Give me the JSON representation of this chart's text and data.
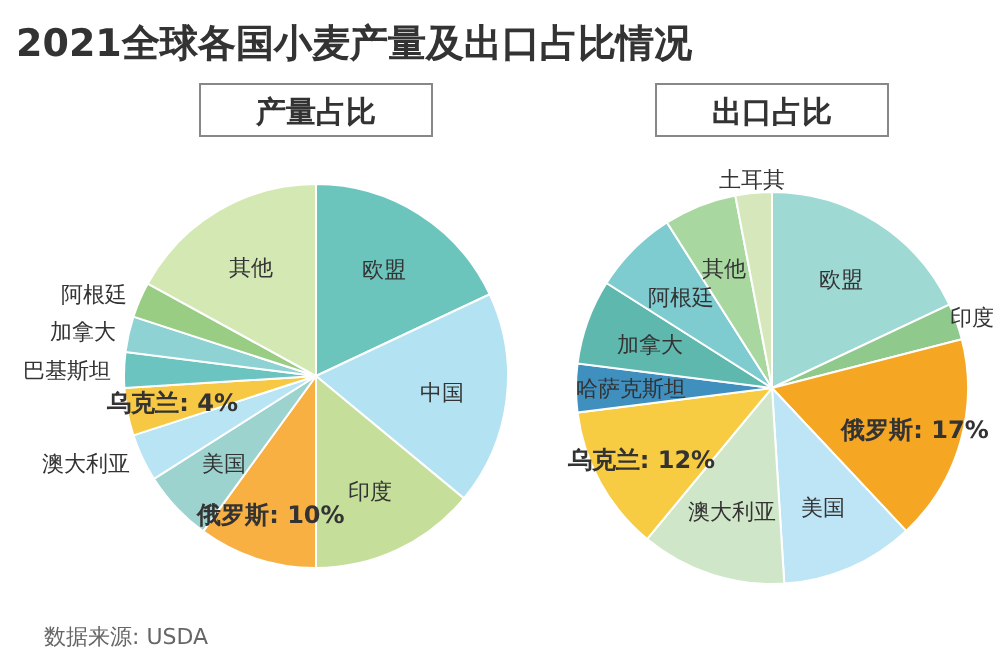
{
  "chart_data": [
    {
      "type": "other",
      "title": "2021全球各国小麦产量及出口占比情况",
      "annotations": [
        "数据来源: USDA"
      ]
    },
    {
      "type": "pie",
      "title": "产量占比",
      "categories": [
        "欧盟",
        "中国",
        "印度",
        "俄罗斯",
        "美国",
        "澳大利亚",
        "乌克兰",
        "巴基斯坦",
        "加拿大",
        "阿根廷",
        "其他"
      ],
      "values": [
        18,
        18,
        14,
        10,
        6,
        4,
        4,
        3,
        3,
        3,
        17
      ],
      "value_labels": [
        null,
        null,
        null,
        "10%",
        null,
        null,
        "4%",
        null,
        null,
        null,
        null
      ],
      "colors": [
        "#6cc5bc",
        "#b3e2f2",
        "#c5df9a",
        "#f9b042",
        "#9dd3cf",
        "#b8e4f4",
        "#f7c843",
        "#6bc4bf",
        "#8fd2d4",
        "#9acd84",
        "#d4e8b4"
      ]
    },
    {
      "type": "pie",
      "title": "出口占比",
      "categories": [
        "欧盟",
        "印度",
        "俄罗斯",
        "美国",
        "澳大利亚",
        "乌克兰",
        "哈萨克斯坦",
        "加拿大",
        "阿根廷",
        "其他",
        "土耳其"
      ],
      "values": [
        18,
        3,
        17,
        11,
        12,
        12,
        4,
        7,
        7,
        6,
        3
      ],
      "value_labels": [
        null,
        null,
        "17%",
        null,
        null,
        "12%",
        null,
        null,
        null,
        null,
        null
      ],
      "colors": [
        "#9ed9d4",
        "#8fc98c",
        "#f5a623",
        "#bde5f5",
        "#cfe6c8",
        "#f8cc42",
        "#3f8fbf",
        "#5fb8ae",
        "#7ecbd0",
        "#a8d8a0",
        "#d6e8bb"
      ]
    }
  ]
}
